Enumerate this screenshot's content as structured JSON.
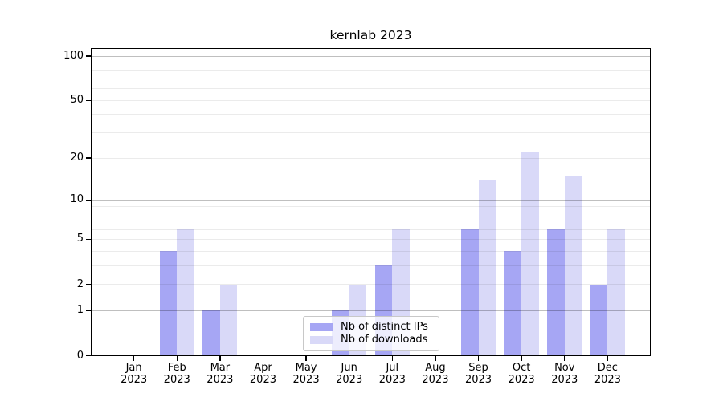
{
  "chart_data": {
    "type": "bar",
    "title": "kernlab 2023",
    "categories": [
      "Jan 2023",
      "Feb 2023",
      "Mar 2023",
      "Apr 2023",
      "May 2023",
      "Jun 2023",
      "Jul 2023",
      "Aug 2023",
      "Sep 2023",
      "Oct 2023",
      "Nov 2023",
      "Dec 2023"
    ],
    "series": [
      {
        "name": "Nb of distinct IPs",
        "color": "#a6a6f4",
        "values": [
          0,
          4,
          1,
          0,
          0,
          1,
          3,
          0,
          6,
          4,
          6,
          2
        ]
      },
      {
        "name": "Nb of downloads",
        "color": "#d9d9f8",
        "values": [
          0,
          6,
          2,
          0,
          0,
          2,
          6,
          0,
          14,
          22,
          15,
          6
        ]
      }
    ],
    "yscale": "log1p",
    "ylim": [
      0,
      100
    ],
    "yticks": [
      0,
      1,
      2,
      5,
      10,
      20,
      50,
      100
    ],
    "ytick_labels": [
      "0",
      "1",
      "2",
      "5",
      "10",
      "20",
      "50",
      "100"
    ],
    "major_gridlines": [
      1,
      10,
      100
    ],
    "minor_gridlines": [
      2,
      3,
      4,
      5,
      6,
      7,
      8,
      9,
      20,
      30,
      40,
      50,
      60,
      70,
      80,
      90
    ],
    "grid": true,
    "legend_position": "lower-center-inside"
  },
  "colors": {
    "background": "#ffffff",
    "axis": "#000000",
    "text": "#000000",
    "legend_border": "#c8c8c8"
  }
}
